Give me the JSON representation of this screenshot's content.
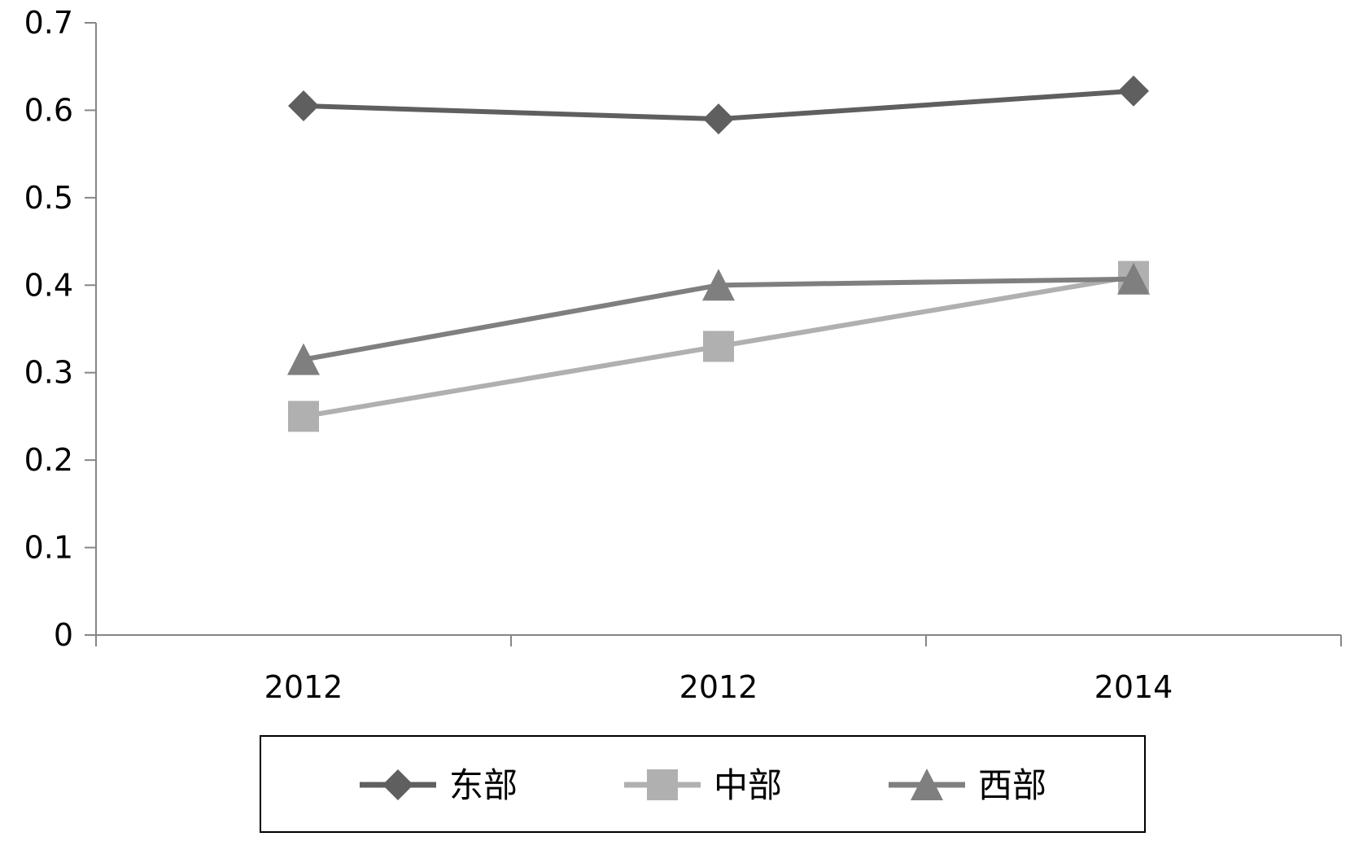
{
  "chart_data": {
    "type": "line",
    "title": "",
    "xlabel": "",
    "ylabel": "",
    "categories": [
      "2012",
      "2012",
      "2014"
    ],
    "ylim": [
      0,
      0.7
    ],
    "yticks": [
      "0",
      "0.1",
      "0.2",
      "0.3",
      "0.4",
      "0.5",
      "0.6",
      "0.7"
    ],
    "grid": false,
    "legend_position": "bottom",
    "series": [
      {
        "name": "东部",
        "values": [
          0.605,
          0.59,
          0.622
        ],
        "color": "#5f5f5f",
        "marker": "diamond"
      },
      {
        "name": "中部",
        "values": [
          0.25,
          0.33,
          0.41
        ],
        "color": "#b0b0b0",
        "marker": "square"
      },
      {
        "name": "西部",
        "values": [
          0.315,
          0.4,
          0.407
        ],
        "color": "#7f7f7f",
        "marker": "triangle"
      }
    ]
  }
}
